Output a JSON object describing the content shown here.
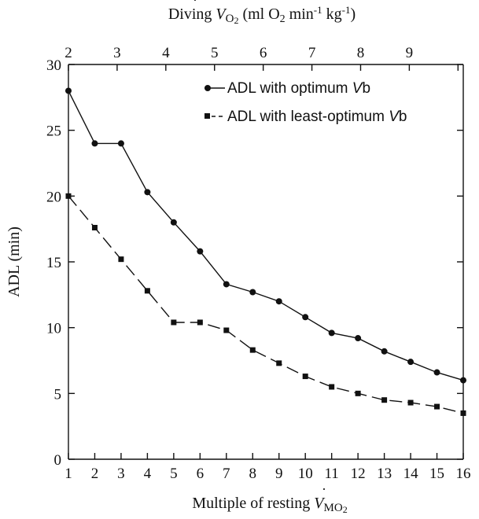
{
  "chart_data": {
    "type": "line",
    "x_bottom": {
      "label": "Multiple of resting V̇MO2",
      "range": [
        1,
        16
      ],
      "ticks": [
        1,
        2,
        3,
        4,
        5,
        6,
        7,
        8,
        9,
        10,
        11,
        12,
        13,
        14,
        15,
        16
      ]
    },
    "x_top": {
      "label": "Diving V̇O2 (ml O2 min-1 kg-1)",
      "ticks": [
        {
          "label": "2",
          "bottom_x": 1.0
        },
        {
          "label": "3",
          "bottom_x": 2.85
        },
        {
          "label": "4",
          "bottom_x": 4.7
        },
        {
          "label": "5",
          "bottom_x": 6.55
        },
        {
          "label": "6",
          "bottom_x": 8.4
        },
        {
          "label": "7",
          "bottom_x": 10.25
        },
        {
          "label": "8",
          "bottom_x": 12.1
        },
        {
          "label": "9",
          "bottom_x": 13.95
        }
      ],
      "extra_tick_positions": [
        15.8
      ]
    },
    "y": {
      "label": "ADL (min)",
      "range": [
        0,
        30
      ],
      "ticks": [
        0,
        5,
        10,
        15,
        20,
        25,
        30
      ]
    },
    "legend_position": "top-right",
    "grid": false,
    "series": [
      {
        "name": "ADL with optimum V̇b",
        "marker": "circle",
        "line_style": "solid",
        "x": [
          1,
          2,
          3,
          4,
          5,
          6,
          7,
          8,
          9,
          10,
          11,
          12,
          13,
          14,
          15,
          16
        ],
        "values": [
          28,
          24,
          24,
          20.3,
          18,
          15.8,
          13.3,
          12.7,
          12,
          10.8,
          9.6,
          9.2,
          8.2,
          7.4,
          6.6,
          6
        ]
      },
      {
        "name": "ADL with least-optimum V̇b",
        "marker": "square",
        "line_style": "dashed",
        "x": [
          1,
          2,
          3,
          4,
          5,
          6,
          7,
          8,
          9,
          10,
          11,
          12,
          13,
          14,
          15,
          16
        ],
        "values": [
          20,
          17.6,
          15.2,
          12.8,
          10.4,
          10.4,
          9.8,
          8.3,
          7.3,
          6.3,
          5.5,
          5,
          4.5,
          4.3,
          4,
          3.5
        ]
      }
    ]
  },
  "labels": {
    "top_axis": {
      "prefix": "Diving ",
      "var": "V",
      "sub": "O",
      "sub2": "2",
      "unit_a": " (ml O",
      "unit_b": "2",
      "unit_c": " min",
      "unit_d": "-1",
      "unit_e": " kg",
      "unit_f": "-1",
      "unit_g": ")"
    },
    "bottom_axis": {
      "prefix": "Multiple of resting ",
      "var": "V",
      "sub": "MO",
      "sub2": "2"
    },
    "y_axis": "ADL (min)",
    "legend": [
      {
        "prefix": "ADL with optimum ",
        "var": "V",
        "suffix": "b"
      },
      {
        "prefix": "ADL with least-optimum ",
        "var": "V",
        "suffix": "b"
      }
    ]
  },
  "colors": {
    "ink": "#111111",
    "background": "#ffffff"
  }
}
